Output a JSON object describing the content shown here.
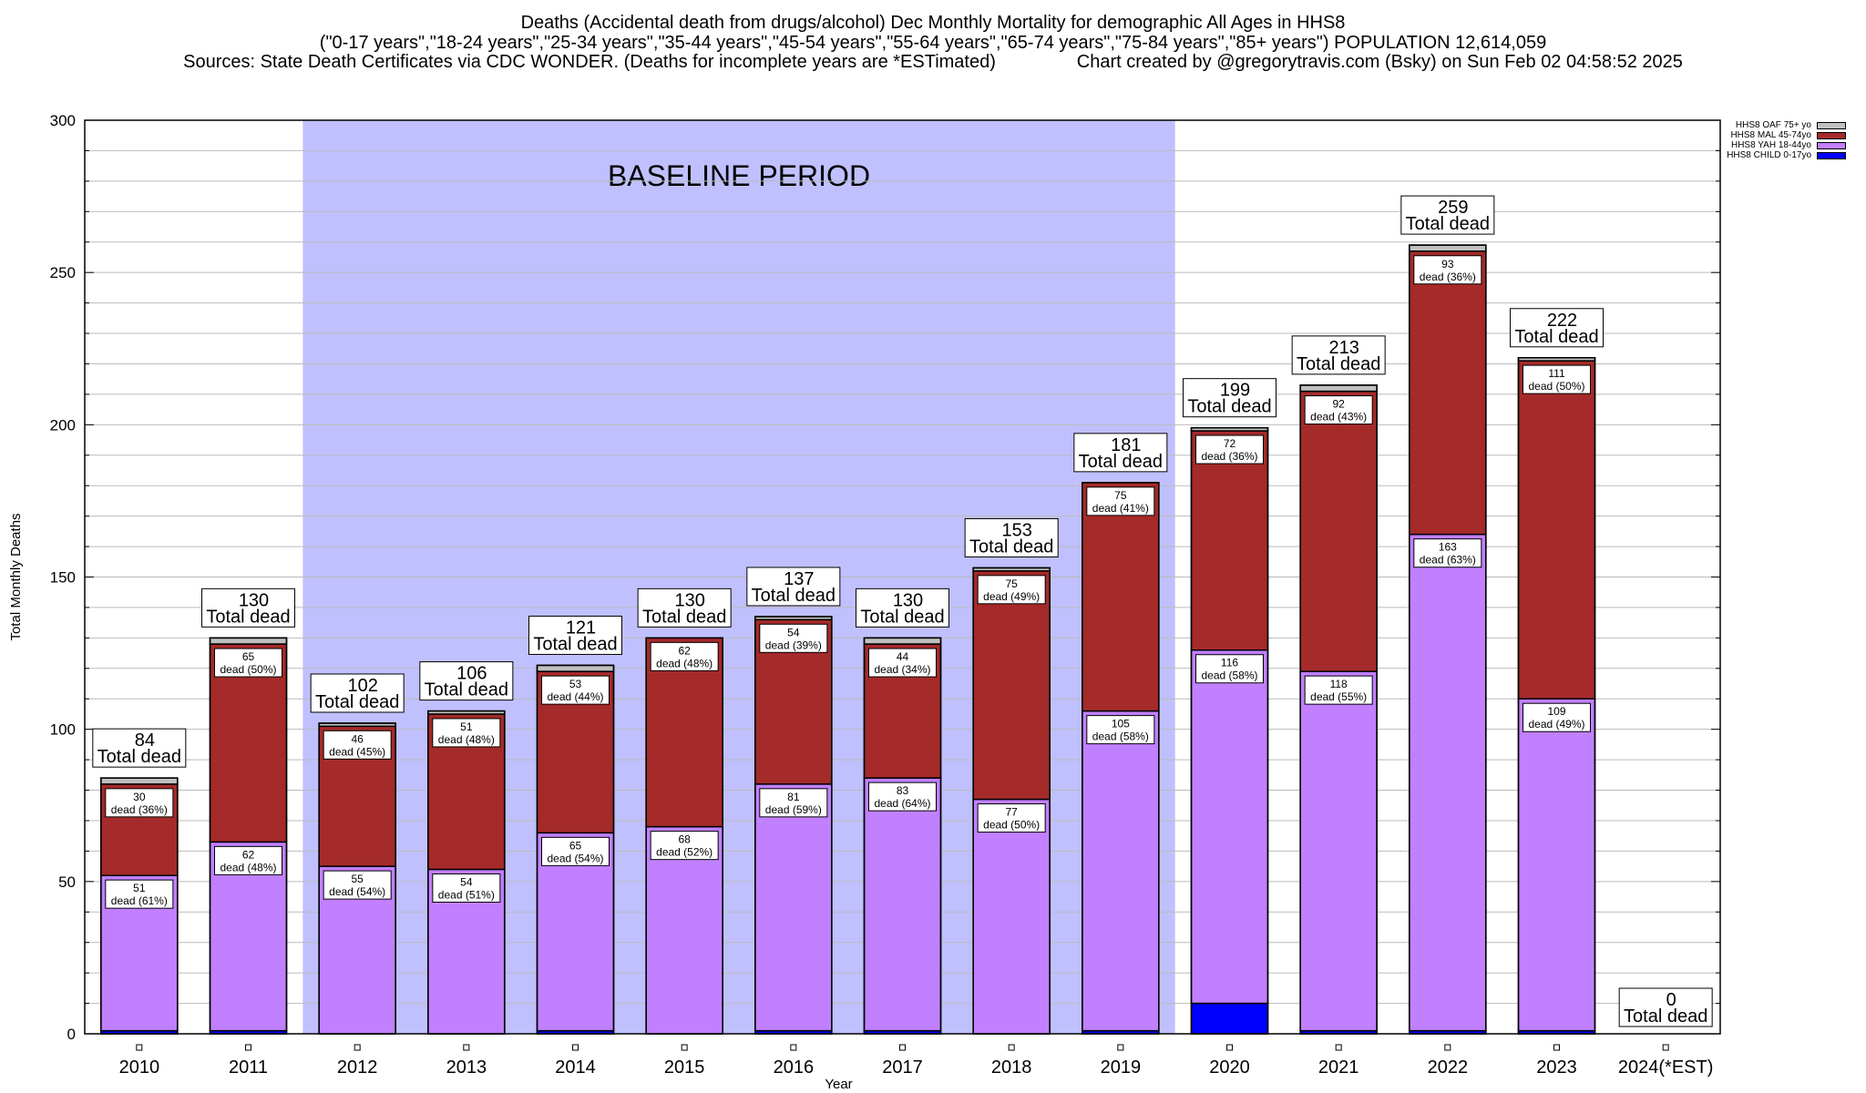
{
  "header": {
    "title_line1": "Deaths (Accidental death from drugs/alcohol) Dec Monthly Mortality for demographic All Ages in HHS8",
    "title_line2": "(\"0-17 years\",\"18-24 years\",\"25-34 years\",\"35-44 years\",\"45-54 years\",\"55-64 years\",\"65-74 years\",\"75-84 years\",\"85+ years\") POPULATION 12,614,059",
    "title_line3": "Sources: State Death Certificates via CDC WONDER. (Deaths for incomplete years are *ESTimated)                Chart created by @gregorytravis.com (Bsky) on Sun Feb 02 04:58:52 2025"
  },
  "chart_data": {
    "type": "bar",
    "stacked": true,
    "title": "Deaths (Accidental death from drugs/alcohol) Dec Monthly Mortality for demographic All Ages in HHS8",
    "xlabel": "Year",
    "ylabel": "Total Monthly Deaths",
    "ylim": [
      0,
      300
    ],
    "yticks": [
      0,
      50,
      100,
      150,
      200,
      250,
      300
    ],
    "grid": true,
    "legend_position": "top-right",
    "categories": [
      "2010",
      "2011",
      "2012",
      "2013",
      "2014",
      "2015",
      "2016",
      "2017",
      "2018",
      "2019",
      "2020",
      "2021",
      "2022",
      "2023",
      "2024(*EST)"
    ],
    "series": [
      {
        "name": "HHS8 CHILD 0-17yo",
        "color": "#0000ff",
        "values": [
          1,
          1,
          0,
          0,
          1,
          0,
          1,
          1,
          0,
          1,
          10,
          1,
          1,
          1,
          0
        ]
      },
      {
        "name": "HHS8 YAH 18-44yo",
        "color": "#c080ff",
        "values": [
          51,
          62,
          55,
          54,
          65,
          68,
          81,
          83,
          77,
          105,
          116,
          118,
          163,
          109,
          0
        ],
        "labels": [
          "dead (61%)",
          "dead (48%)",
          "dead (54%)",
          "dead (51%)",
          "dead (54%)",
          "dead (52%)",
          "dead (59%)",
          "dead (64%)",
          "dead (50%)",
          "dead (58%)",
          "dead (58%)",
          "dead (55%)",
          "dead (63%)",
          "dead (49%)",
          ""
        ]
      },
      {
        "name": "HHS8 MAL 45-74yo",
        "color": "#a52a2a",
        "values": [
          30,
          65,
          46,
          51,
          53,
          62,
          54,
          44,
          75,
          75,
          72,
          92,
          93,
          111,
          0
        ],
        "labels": [
          "dead (36%)",
          "dead (50%)",
          "dead (45%)",
          "dead (48%)",
          "dead (44%)",
          "dead (48%)",
          "dead (39%)",
          "dead (34%)",
          "dead (49%)",
          "dead (41%)",
          "dead (36%)",
          "dead (43%)",
          "dead (36%)",
          "dead (50%)",
          ""
        ]
      },
      {
        "name": "HHS8 OAF 75+ yo",
        "color": "#c0c0c0",
        "values": [
          2,
          2,
          1,
          1,
          2,
          0,
          1,
          2,
          1,
          0,
          1,
          2,
          2,
          1,
          0
        ]
      }
    ],
    "totals": [
      84,
      130,
      102,
      106,
      121,
      130,
      137,
      130,
      153,
      181,
      199,
      213,
      259,
      222,
      0
    ],
    "total_label_suffix": "Total dead",
    "annotations": [
      {
        "text": "BASELINE PERIOD",
        "span_categories": [
          "2012",
          "2019"
        ],
        "shade_color": "#c0c0ff"
      }
    ]
  }
}
